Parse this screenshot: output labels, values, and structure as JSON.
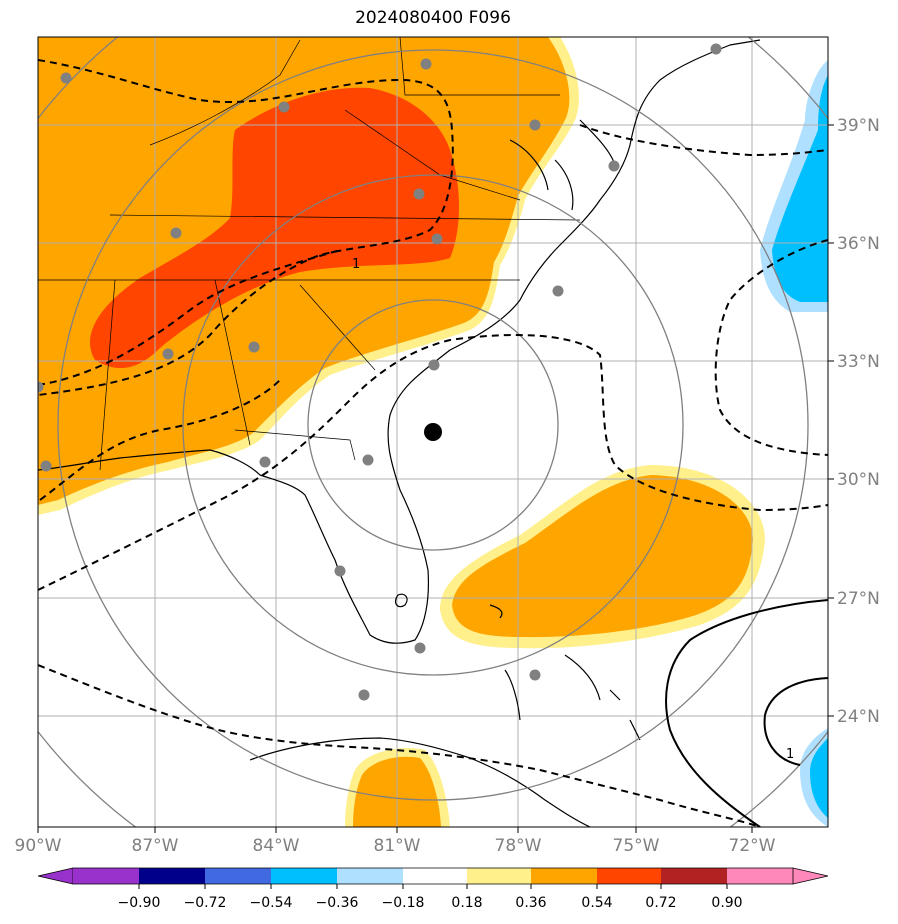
{
  "title": "2024080400 F096",
  "map": {
    "lon_ticks": [
      "90°W",
      "87°W",
      "84°W",
      "81°W",
      "78°W",
      "75°W",
      "72°W"
    ],
    "lat_ticks": [
      "39°N",
      "36°N",
      "33°N",
      "30°N",
      "27°N",
      "24°N"
    ],
    "contour_labels": [
      "1",
      "1"
    ],
    "center_marker": "black-dot",
    "colors": {
      "orange": "#ffa500",
      "red_orange": "#ff4500",
      "light_yellow": "#fff08c",
      "cyan": "#00bfff",
      "light_blue": "#b0e0ff"
    }
  },
  "colorbar": {
    "ticks": [
      "−0.90",
      "−0.72",
      "−0.54",
      "−0.36",
      "−0.18",
      "0.18",
      "0.36",
      "0.54",
      "0.72",
      "0.90"
    ],
    "colors": [
      "#9932cc",
      "#00008b",
      "#4169e1",
      "#00bfff",
      "#b0e0ff",
      "#ffffff",
      "#fff08c",
      "#ffa500",
      "#ff4500",
      "#b22222",
      "#ff88bb"
    ]
  }
}
